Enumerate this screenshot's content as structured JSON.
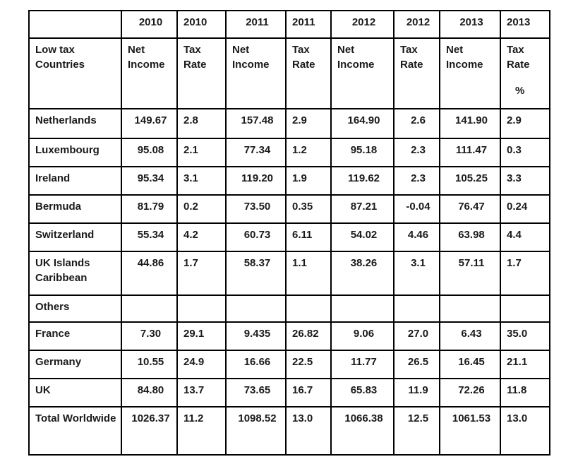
{
  "table": {
    "header_years": [
      "",
      "2010",
      "2010",
      "2011",
      "2011",
      "2012",
      "2012",
      "2013",
      "2013"
    ],
    "header_labels": [
      "Low tax Countries",
      "Net Income",
      "Tax Rate",
      "Net Income",
      "Tax Rate",
      "Net Income",
      "Tax Rate",
      "Net Income",
      "Tax Rate"
    ],
    "percent_symbol": "%",
    "rows": [
      {
        "label": "Netherlands",
        "values": [
          "149.67",
          "2.8",
          "157.48",
          "2.9",
          "164.90",
          "2.6",
          "141.90",
          "2.9"
        ]
      },
      {
        "label": "Luxembourg",
        "values": [
          "95.08",
          "2.1",
          "77.34",
          "1.2",
          "95.18",
          "2.3",
          "111.47",
          "0.3"
        ]
      },
      {
        "label": "Ireland",
        "values": [
          "95.34",
          "3.1",
          "119.20",
          "1.9",
          "119.62",
          "2.3",
          "105.25",
          "3.3"
        ]
      },
      {
        "label": "Bermuda",
        "values": [
          "81.79",
          "0.2",
          "73.50",
          "0.35",
          "87.21",
          "-0.04",
          "76.47",
          "0.24"
        ]
      },
      {
        "label": "Switzerland",
        "values": [
          "55.34",
          "4.2",
          "60.73",
          "6.11",
          "54.02",
          "4.46",
          "63.98",
          "4.4"
        ]
      },
      {
        "label": "UK Islands Caribbean",
        "values": [
          "44.86",
          "1.7",
          "58.37",
          "1.1",
          "38.26",
          "3.1",
          "57.11",
          "1.7"
        ]
      },
      {
        "label": "Others",
        "values": [
          "",
          "",
          "",
          "",
          "",
          "",
          "",
          ""
        ]
      },
      {
        "label": "France",
        "values": [
          "7.30",
          "29.1",
          "9.435",
          "26.82",
          "9.06",
          "27.0",
          "6.43",
          "35.0"
        ]
      },
      {
        "label": "Germany",
        "values": [
          "10.55",
          "24.9",
          "16.66",
          "22.5",
          "11.77",
          "26.5",
          "16.45",
          "21.1"
        ]
      },
      {
        "label": "UK",
        "values": [
          "84.80",
          "13.7",
          "73.65",
          "16.7",
          "65.83",
          "11.9",
          "72.26",
          "11.8"
        ]
      },
      {
        "label": "Total Worldwide",
        "values": [
          "1026.37",
          "11.2",
          "1098.52",
          "13.0",
          "1066.38",
          "12.5",
          "1061.53",
          "13.0"
        ]
      }
    ]
  },
  "chart_data": {
    "type": "table",
    "title": "",
    "columns": [
      "Low tax Countries",
      "2010 Net Income",
      "2010 Tax Rate",
      "2011 Net Income",
      "2011 Tax Rate",
      "2012 Net Income",
      "2012 Tax Rate",
      "2013 Net Income",
      "2013 Tax Rate %"
    ],
    "rows": [
      [
        "Netherlands",
        149.67,
        2.8,
        157.48,
        2.9,
        164.9,
        2.6,
        141.9,
        2.9
      ],
      [
        "Luxembourg",
        95.08,
        2.1,
        77.34,
        1.2,
        95.18,
        2.3,
        111.47,
        0.3
      ],
      [
        "Ireland",
        95.34,
        3.1,
        119.2,
        1.9,
        119.62,
        2.3,
        105.25,
        3.3
      ],
      [
        "Bermuda",
        81.79,
        0.2,
        73.5,
        0.35,
        87.21,
        -0.04,
        76.47,
        0.24
      ],
      [
        "Switzerland",
        55.34,
        4.2,
        60.73,
        6.11,
        54.02,
        4.46,
        63.98,
        4.4
      ],
      [
        "UK Islands Caribbean",
        44.86,
        1.7,
        58.37,
        1.1,
        38.26,
        3.1,
        57.11,
        1.7
      ],
      [
        "Others",
        null,
        null,
        null,
        null,
        null,
        null,
        null,
        null
      ],
      [
        "France",
        7.3,
        29.1,
        9.435,
        26.82,
        9.06,
        27.0,
        6.43,
        35.0
      ],
      [
        "Germany",
        10.55,
        24.9,
        16.66,
        22.5,
        11.77,
        26.5,
        16.45,
        21.1
      ],
      [
        "UK",
        84.8,
        13.7,
        73.65,
        16.7,
        65.83,
        11.9,
        72.26,
        11.8
      ],
      [
        "Total Worldwide",
        1026.37,
        11.2,
        1098.52,
        13.0,
        1066.38,
        12.5,
        1061.53,
        13.0
      ]
    ]
  }
}
